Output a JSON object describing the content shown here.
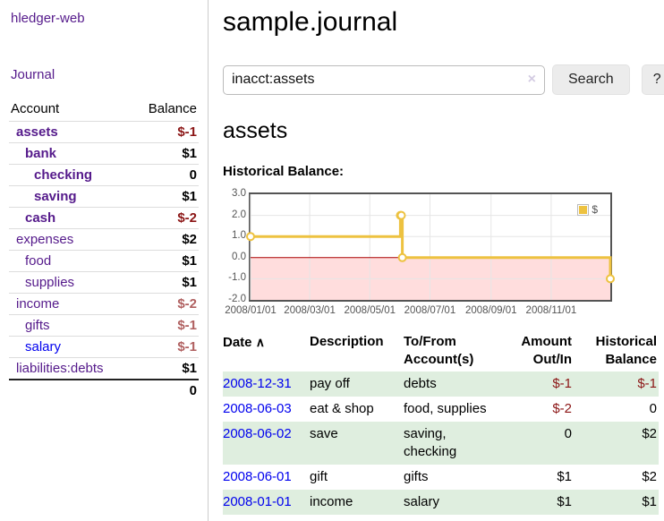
{
  "colors": {
    "visited_link_purple": "#551a8b",
    "link_blue": "#0000ee",
    "negative_dark_red": "#8b1515",
    "negative_muted_red": "#b06060",
    "row_stripe_green": "#dfeedf",
    "button_gray": "#ececec"
  },
  "sidebar": {
    "app_title": "hledger-web",
    "nav_journal": "Journal",
    "accounts_table": {
      "header_account": "Account",
      "header_balance": "Balance",
      "rows": [
        {
          "account": "assets",
          "balance": "$-1"
        },
        {
          "account": "bank",
          "balance": "$1"
        },
        {
          "account": "checking",
          "balance": "0"
        },
        {
          "account": "saving",
          "balance": "$1"
        },
        {
          "account": "cash",
          "balance": "$-2"
        },
        {
          "account": "expenses",
          "balance": "$2"
        },
        {
          "account": "food",
          "balance": "$1"
        },
        {
          "account": "supplies",
          "balance": "$1"
        },
        {
          "account": "income",
          "balance": "$-2"
        },
        {
          "account": "gifts",
          "balance": "$-1"
        },
        {
          "account": "salary",
          "balance": "$-1"
        },
        {
          "account": "liabilities:debts",
          "balance": "$1"
        }
      ],
      "total": "0"
    }
  },
  "main": {
    "title": "sample.journal",
    "search": {
      "value": "inacct:assets",
      "clear_icon": "×",
      "search_button": "Search",
      "help_button": "?"
    },
    "account_heading": "assets",
    "chart_label": "Historical Balance:"
  },
  "chart_data": {
    "type": "line",
    "step": true,
    "title": "Historical Balance",
    "x_range": [
      "2008-01-01",
      "2008-12-31"
    ],
    "ylim": [
      -2,
      3
    ],
    "grid": true,
    "legend_position": "top-right",
    "x_ticks": [
      {
        "date": "2008-01-01",
        "label": "2008/01/01"
      },
      {
        "date": "2008-03-01",
        "label": "2008/03/01"
      },
      {
        "date": "2008-05-01",
        "label": "2008/05/01"
      },
      {
        "date": "2008-07-01",
        "label": "2008/07/01"
      },
      {
        "date": "2008-09-01",
        "label": "2008/09/01"
      },
      {
        "date": "2008-11-01",
        "label": "2008/11/01"
      }
    ],
    "y_ticks": [
      {
        "value": 3,
        "label": "3.0"
      },
      {
        "value": 2,
        "label": "2.0"
      },
      {
        "value": 1,
        "label": "1.0"
      },
      {
        "value": 0,
        "label": "0.0"
      },
      {
        "value": -1,
        "label": "-1.0"
      },
      {
        "value": -2,
        "label": "-2.0"
      }
    ],
    "series": [
      {
        "name": "$",
        "color": "#edc240",
        "points": [
          {
            "date": "2008-01-01",
            "value": 1
          },
          {
            "date": "2008-06-01",
            "value": 2
          },
          {
            "date": "2008-06-02",
            "value": 2
          },
          {
            "date": "2008-06-03",
            "value": 0
          },
          {
            "date": "2008-12-31",
            "value": -1
          }
        ]
      }
    ],
    "negative_region_color": "#ffdddd",
    "zero_line_color": "#aa0000",
    "grid_color": "#e6e6e6",
    "border_color": "#545454"
  },
  "register": {
    "headers": [
      "Date",
      "Description",
      "To/From Account(s)",
      "Amount Out/In",
      "Historical Balance"
    ],
    "sort_icon": "∧",
    "rows": [
      {
        "date": "2008-12-31",
        "description": "pay off",
        "accounts": "debts",
        "amount": "$-1",
        "balance": "$-1"
      },
      {
        "date": "2008-06-03",
        "description": "eat & shop",
        "accounts": "food, supplies",
        "amount": "$-2",
        "balance": "0"
      },
      {
        "date": "2008-06-02",
        "description": "save",
        "accounts": "saving, checking",
        "amount": "0",
        "balance": "$2"
      },
      {
        "date": "2008-06-01",
        "description": "gift",
        "accounts": "gifts",
        "amount": "$1",
        "balance": "$2"
      },
      {
        "date": "2008-01-01",
        "description": "income",
        "accounts": "salary",
        "amount": "$1",
        "balance": "$1"
      }
    ]
  }
}
